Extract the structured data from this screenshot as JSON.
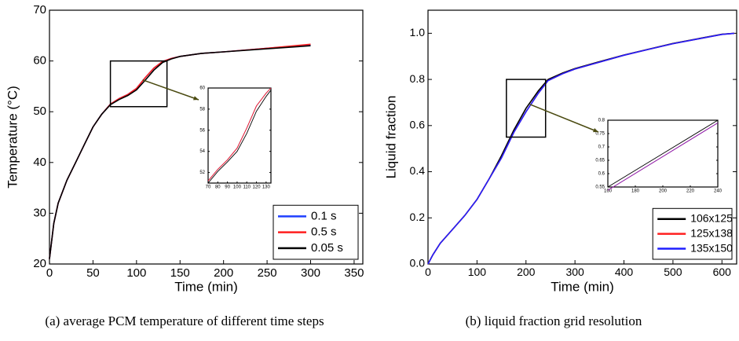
{
  "chart_data": [
    {
      "type": "line",
      "xlabel": "Time (min)",
      "ylabel": "Temperature (°C)",
      "caption": "(a) average PCM temperature of different time steps",
      "xlim": [
        0,
        360
      ],
      "xticks": [
        0,
        50,
        100,
        150,
        200,
        250,
        300,
        350
      ],
      "ylim": [
        20,
        70
      ],
      "yticks": [
        20,
        30,
        40,
        50,
        60,
        70
      ],
      "legend": "lower right",
      "x": [
        0,
        5,
        10,
        20,
        30,
        40,
        50,
        60,
        70,
        80,
        90,
        100,
        110,
        120,
        130,
        140,
        150,
        175,
        200,
        250,
        300
      ],
      "series": [
        {
          "name": "0.1 s",
          "color": "#1f3fff",
          "values": [
            21,
            28,
            32,
            36.5,
            40,
            43.5,
            47,
            49.5,
            51.5,
            52.6,
            53.4,
            54.6,
            56.7,
            58.6,
            59.9,
            60.5,
            60.9,
            61.5,
            61.8,
            62.5,
            63.2
          ]
        },
        {
          "name": "0.5 s",
          "color": "#ff1f1f",
          "values": [
            21,
            28,
            32,
            36.5,
            40,
            43.5,
            47,
            49.5,
            51.5,
            52.6,
            53.4,
            54.6,
            56.7,
            58.6,
            59.9,
            60.5,
            60.9,
            61.5,
            61.8,
            62.5,
            63.3
          ]
        },
        {
          "name": "0.05 s",
          "color": "#000000",
          "values": [
            21,
            28,
            32,
            36.5,
            40,
            43.5,
            47,
            49.5,
            51.4,
            52.4,
            53.2,
            54.3,
            56.2,
            58.2,
            59.7,
            60.4,
            60.9,
            61.5,
            61.8,
            62.4,
            63.0
          ]
        }
      ],
      "inset": {
        "xlim": [
          70,
          135
        ],
        "xticks": [
          70,
          80,
          90,
          100,
          110,
          120,
          130
        ],
        "ylim": [
          51,
          60
        ],
        "yticks": [
          52,
          54,
          56,
          58,
          60
        ],
        "x": [
          70,
          80,
          90,
          100,
          110,
          120,
          130,
          135
        ],
        "series": [
          {
            "color": "#1f3fff",
            "values": [
              51.2,
              52.3,
              53.2,
              54.3,
              56.2,
              58.3,
              59.5,
              60
            ]
          },
          {
            "color": "#ff1f1f",
            "values": [
              51.2,
              52.3,
              53.2,
              54.3,
              56.2,
              58.3,
              59.5,
              60
            ]
          },
          {
            "color": "#000000",
            "values": [
              51.0,
              52.1,
              53.0,
              54.0,
              55.7,
              57.8,
              59.2,
              59.8
            ]
          }
        ]
      }
    },
    {
      "type": "line",
      "xlabel": "Time (min)",
      "ylabel": "Liquid fraction",
      "caption": "(b) liquid fraction grid resolution",
      "xlim": [
        0,
        630
      ],
      "xticks": [
        0,
        100,
        200,
        300,
        400,
        500,
        600
      ],
      "ylim": [
        0,
        1.1
      ],
      "yticks": [
        {
          "value": 0,
          "label": "0.0"
        },
        0.2,
        0.4,
        0.6,
        0.8,
        {
          "value": 1,
          "label": "1.0"
        }
      ],
      "legend": "lower right",
      "x": [
        0,
        10,
        25,
        50,
        75,
        100,
        125,
        150,
        175,
        200,
        225,
        245,
        275,
        300,
        350,
        400,
        450,
        500,
        550,
        600,
        625
      ],
      "series": [
        {
          "name": "106x125",
          "color": "#000000",
          "values": [
            0,
            0.04,
            0.09,
            0.15,
            0.21,
            0.28,
            0.37,
            0.47,
            0.58,
            0.675,
            0.75,
            0.8,
            0.828,
            0.847,
            0.877,
            0.906,
            0.931,
            0.956,
            0.976,
            0.996,
            1.0
          ]
        },
        {
          "name": "125x138",
          "color": "#ff1f1f",
          "values": [
            0,
            0.04,
            0.09,
            0.15,
            0.21,
            0.28,
            0.37,
            0.46,
            0.57,
            0.66,
            0.74,
            0.795,
            0.825,
            0.845,
            0.875,
            0.905,
            0.93,
            0.955,
            0.975,
            0.995,
            1.0
          ]
        },
        {
          "name": "135x150",
          "color": "#1f1fff",
          "values": [
            0,
            0.04,
            0.09,
            0.15,
            0.21,
            0.28,
            0.37,
            0.46,
            0.57,
            0.66,
            0.74,
            0.795,
            0.825,
            0.845,
            0.875,
            0.905,
            0.93,
            0.955,
            0.975,
            0.995,
            1.0
          ]
        }
      ],
      "inset": {
        "xlim": [
          160,
          240
        ],
        "xticks": [
          160,
          180,
          200,
          220,
          240
        ],
        "ylim": [
          0.55,
          0.8
        ],
        "yticks": [
          0.55,
          0.6,
          0.65,
          0.7,
          0.75,
          0.8
        ],
        "x": [
          160,
          200,
          240
        ],
        "series": [
          {
            "color": "#000000",
            "values": [
              0.55,
              0.675,
              0.8
            ]
          },
          {
            "color": "#ff1f1f",
            "values": [
              0.538,
              0.664,
              0.79
            ]
          },
          {
            "color": "#7f1fbf",
            "values": [
              0.538,
              0.664,
              0.79
            ]
          }
        ]
      }
    }
  ]
}
